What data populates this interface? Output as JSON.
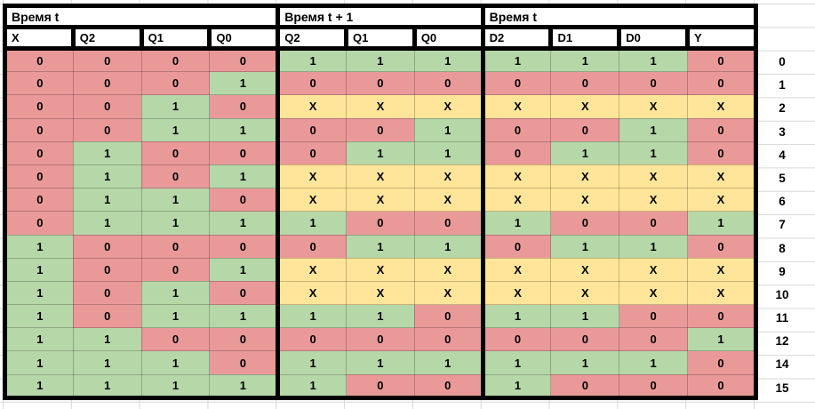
{
  "sheet": {
    "group_headers": [
      {
        "label": "Время t",
        "colspan": 4
      },
      {
        "label": "Время t + 1",
        "colspan": 3
      },
      {
        "label": "Время t",
        "colspan": 4
      }
    ],
    "column_headers": [
      "X",
      "Q2",
      "Q1",
      "Q0",
      "Q2",
      "Q1",
      "Q0",
      "D2",
      "D1",
      "D0",
      "Y"
    ],
    "value_colors": {
      "0": "#ea9999",
      "1": "#b6d7a8",
      "X": "#ffe599"
    },
    "grid_color": "#d9d9d9",
    "border_color": "#000000",
    "rows": [
      {
        "label": "0",
        "cells": [
          "0",
          "0",
          "0",
          "0",
          "1",
          "1",
          "1",
          "1",
          "1",
          "1",
          "0"
        ]
      },
      {
        "label": "1",
        "cells": [
          "0",
          "0",
          "0",
          "1",
          "0",
          "0",
          "0",
          "0",
          "0",
          "0",
          "0"
        ]
      },
      {
        "label": "2",
        "cells": [
          "0",
          "0",
          "1",
          "0",
          "X",
          "X",
          "X",
          "X",
          "X",
          "X",
          "X"
        ]
      },
      {
        "label": "3",
        "cells": [
          "0",
          "0",
          "1",
          "1",
          "0",
          "0",
          "1",
          "0",
          "0",
          "1",
          "0"
        ]
      },
      {
        "label": "4",
        "cells": [
          "0",
          "1",
          "0",
          "0",
          "0",
          "1",
          "1",
          "0",
          "1",
          "1",
          "0"
        ]
      },
      {
        "label": "5",
        "cells": [
          "0",
          "1",
          "0",
          "1",
          "X",
          "X",
          "X",
          "X",
          "X",
          "X",
          "X"
        ]
      },
      {
        "label": "6",
        "cells": [
          "0",
          "1",
          "1",
          "0",
          "X",
          "X",
          "X",
          "X",
          "X",
          "X",
          "X"
        ]
      },
      {
        "label": "7",
        "cells": [
          "0",
          "1",
          "1",
          "1",
          "1",
          "0",
          "0",
          "1",
          "0",
          "0",
          "1"
        ]
      },
      {
        "label": "8",
        "cells": [
          "1",
          "0",
          "0",
          "0",
          "0",
          "1",
          "1",
          "0",
          "1",
          "1",
          "0"
        ]
      },
      {
        "label": "9",
        "cells": [
          "1",
          "0",
          "0",
          "1",
          "X",
          "X",
          "X",
          "X",
          "X",
          "X",
          "X"
        ]
      },
      {
        "label": "10",
        "cells": [
          "1",
          "0",
          "1",
          "0",
          "X",
          "X",
          "X",
          "X",
          "X",
          "X",
          "X"
        ]
      },
      {
        "label": "11",
        "cells": [
          "1",
          "0",
          "1",
          "1",
          "1",
          "1",
          "0",
          "1",
          "1",
          "0",
          "0"
        ]
      },
      {
        "label": "12",
        "cells": [
          "1",
          "1",
          "0",
          "0",
          "0",
          "0",
          "0",
          "0",
          "0",
          "0",
          "1"
        ]
      },
      {
        "label": "14",
        "cells": [
          "1",
          "1",
          "1",
          "0",
          "1",
          "1",
          "1",
          "1",
          "1",
          "1",
          "0"
        ]
      },
      {
        "label": "15",
        "cells": [
          "1",
          "1",
          "1",
          "1",
          "1",
          "0",
          "0",
          "1",
          "0",
          "0",
          "0"
        ]
      }
    ]
  }
}
